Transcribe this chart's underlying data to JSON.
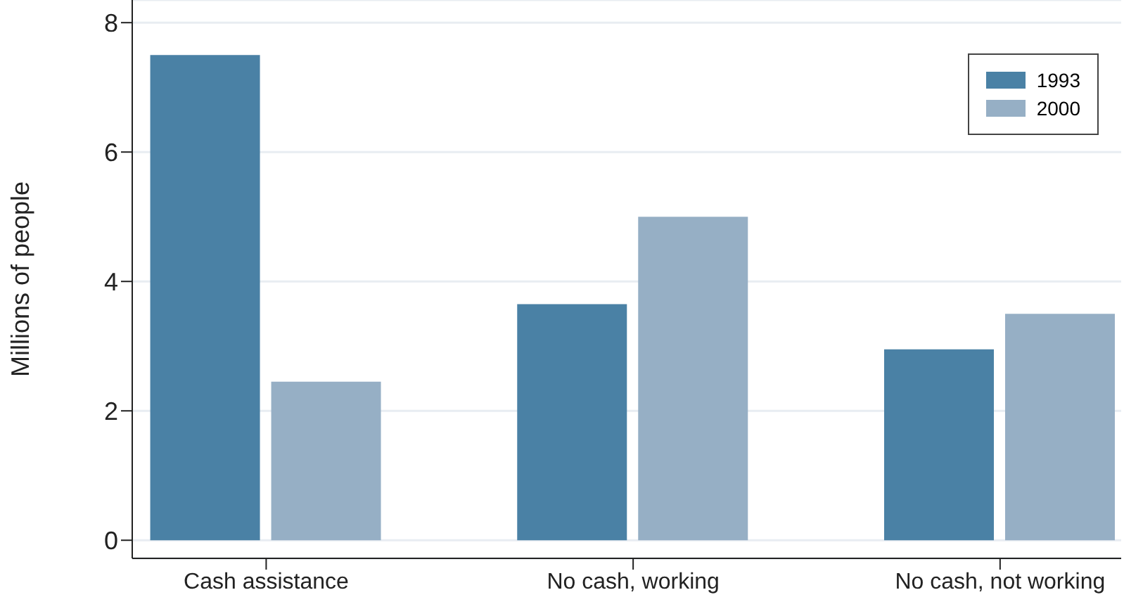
{
  "chart_data": {
    "type": "bar",
    "ylabel": "Millions of people",
    "categories": [
      "Cash assistance",
      "No cash, working",
      "No cash, not working"
    ],
    "series": [
      {
        "name": "1993",
        "color": "#4a81a5",
        "values": [
          7.5,
          3.65,
          2.95
        ]
      },
      {
        "name": "2000",
        "color": "#96afc5",
        "values": [
          2.45,
          5.0,
          3.5
        ]
      }
    ],
    "ylim": [
      -0.28,
      8.35
    ],
    "yticks": [
      0,
      2,
      4,
      6,
      8
    ],
    "grid": "y",
    "legend": "top right"
  }
}
